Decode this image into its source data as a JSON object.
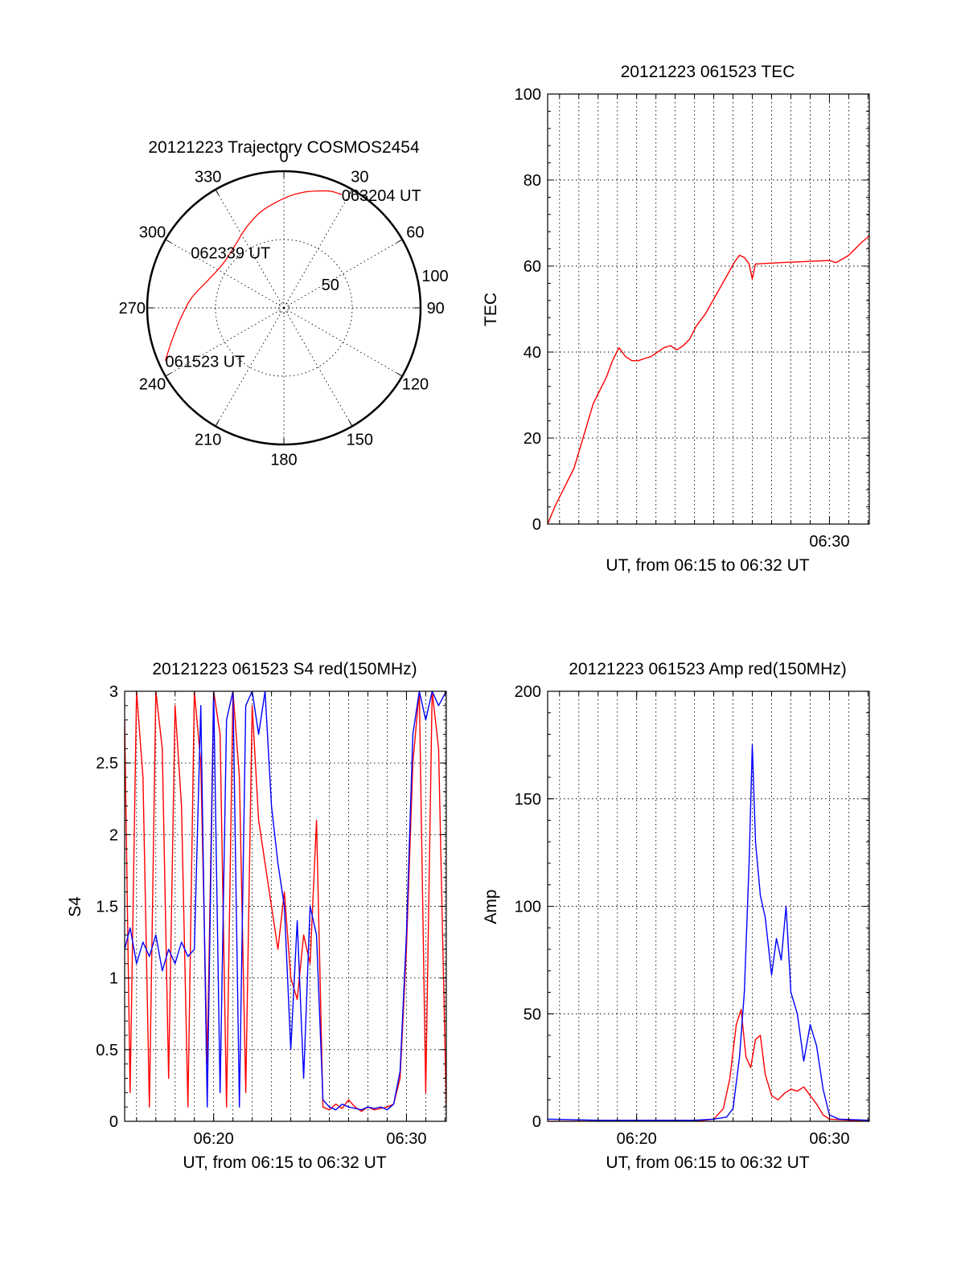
{
  "colors": {
    "red": "#ff0000",
    "blue": "#0000ff",
    "axis": "#000000"
  },
  "chart_data": [
    {
      "type": "polar",
      "title": "20121223 Trajectory COSMOS2454",
      "azimuth_labels": [
        "0",
        "30",
        "60",
        "90",
        "120",
        "150",
        "180",
        "210",
        "240",
        "270",
        "300",
        "330"
      ],
      "radial_labels": [
        "50",
        "100"
      ],
      "grid": true,
      "series": [
        {
          "color": "#ff0000",
          "points": [
            {
              "az": 246,
              "r": 95
            },
            {
              "az": 254,
              "r": 85
            },
            {
              "az": 264,
              "r": 76
            },
            {
              "az": 276,
              "r": 68
            },
            {
              "az": 290,
              "r": 59
            },
            {
              "az": 306,
              "r": 55
            },
            {
              "az": 322,
              "r": 58
            },
            {
              "az": 335,
              "r": 65
            },
            {
              "az": 346,
              "r": 72
            },
            {
              "az": 355,
              "r": 77
            },
            {
              "az": 3,
              "r": 82
            },
            {
              "az": 10,
              "r": 86
            },
            {
              "az": 16,
              "r": 89
            },
            {
              "az": 22,
              "r": 92
            },
            {
              "az": 27,
              "r": 93
            }
          ]
        }
      ],
      "annotations": [
        {
          "text": "061523 UT",
          "az": 246,
          "r": 95
        },
        {
          "text": "062339 UT",
          "az": 322,
          "r": 58
        },
        {
          "text": "063204 UT",
          "az": 27,
          "r": 93
        }
      ]
    },
    {
      "type": "line",
      "title": "20121223 061523 TEC",
      "xlabel": "UT, from 06:15 to 06:32 UT",
      "ylabel": "TEC",
      "xlim": [
        "06:15:23",
        "06:32:04"
      ],
      "ylim": [
        0,
        100
      ],
      "yticks": [
        "0",
        "20",
        "40",
        "60",
        "80",
        "100"
      ],
      "xticks": [
        {
          "t": "06:30:00",
          "label": "06:30"
        }
      ],
      "grid": true,
      "series": [
        {
          "color": "#ff0000",
          "x": [
            "06:15:23",
            "06:15:45",
            "06:16:05",
            "06:16:25",
            "06:16:45",
            "06:17:05",
            "06:17:25",
            "06:17:45",
            "06:18:05",
            "06:18:25",
            "06:18:45",
            "06:19:05",
            "06:19:25",
            "06:19:45",
            "06:20:05",
            "06:20:25",
            "06:20:45",
            "06:21:05",
            "06:21:25",
            "06:21:45",
            "06:22:05",
            "06:22:25",
            "06:22:45",
            "06:23:05",
            "06:23:20",
            "06:23:35",
            "06:23:50",
            "06:24:05",
            "06:24:20",
            "06:24:35",
            "06:24:50",
            "06:25:05",
            "06:25:20",
            "06:25:35",
            "06:25:50",
            "06:26:00",
            "06:26:10",
            "06:26:20",
            "06:26:35",
            "06:27:00",
            "06:27:30",
            "06:28:00",
            "06:28:30",
            "06:29:00",
            "06:29:30",
            "06:30:00",
            "06:30:20",
            "06:30:40",
            "06:31:00",
            "06:31:20",
            "06:31:40",
            "06:32:04"
          ],
          "values": [
            0,
            4,
            7,
            10,
            13,
            18,
            23,
            28,
            31,
            34,
            38,
            41,
            39,
            38,
            38,
            38.5,
            39,
            40,
            41,
            41.5,
            40.5,
            41.5,
            43,
            46,
            47.5,
            49,
            51,
            53,
            55,
            57,
            59,
            61,
            62.5,
            62,
            60.5,
            57,
            60.5,
            60.5,
            60.6,
            60.7,
            60.8,
            60.9,
            61,
            61.1,
            61.2,
            61.3,
            60.8,
            61.6,
            62.5,
            64,
            65.5,
            67
          ]
        }
      ]
    },
    {
      "type": "line",
      "title": "20121223 061523 S4 red(150MHz)",
      "xlabel": "UT, from 06:15 to 06:32 UT",
      "ylabel": "S4",
      "xlim": [
        "06:15:23",
        "06:32:04"
      ],
      "ylim": [
        0,
        3
      ],
      "yticks": [
        "0",
        "0.5",
        "1",
        "1.5",
        "2",
        "2.5",
        "3"
      ],
      "xticks": [
        {
          "t": "06:20:00",
          "label": "06:20"
        },
        {
          "t": "06:30:00",
          "label": "06:30"
        }
      ],
      "grid": true,
      "series": [
        {
          "color": "#ff0000",
          "x": [
            "06:15:23",
            "06:15:40",
            "06:16:00",
            "06:16:20",
            "06:16:40",
            "06:17:00",
            "06:17:20",
            "06:17:40",
            "06:18:00",
            "06:18:20",
            "06:18:40",
            "06:19:00",
            "06:19:20",
            "06:19:40",
            "06:20:00",
            "06:20:20",
            "06:20:40",
            "06:21:00",
            "06:21:20",
            "06:21:40",
            "06:22:00",
            "06:22:20",
            "06:22:40",
            "06:23:00",
            "06:23:20",
            "06:23:40",
            "06:24:00",
            "06:24:20",
            "06:24:40",
            "06:25:00",
            "06:25:20",
            "06:25:40",
            "06:26:00",
            "06:26:20",
            "06:26:40",
            "06:27:00",
            "06:27:20",
            "06:27:40",
            "06:28:00",
            "06:28:20",
            "06:28:40",
            "06:29:00",
            "06:29:20",
            "06:29:40",
            "06:30:00",
            "06:30:20",
            "06:30:40",
            "06:31:00",
            "06:31:20",
            "06:31:40",
            "06:32:04"
          ],
          "values": [
            2.8,
            0.2,
            3,
            2.4,
            0.1,
            3,
            2.6,
            0.3,
            2.9,
            2.2,
            0.1,
            3,
            2.5,
            0.4,
            3,
            2.7,
            0.1,
            3,
            2.4,
            0.2,
            2.9,
            2.1,
            1.8,
            1.5,
            1.2,
            1.6,
            1.0,
            0.85,
            1.3,
            1.1,
            2.1,
            0.1,
            0.08,
            0.12,
            0.09,
            0.15,
            0.1,
            0.07,
            0.1,
            0.08,
            0.09,
            0.1,
            0.12,
            0.3,
            1.2,
            2.5,
            3,
            0.2,
            3,
            2.6,
            0.1
          ]
        },
        {
          "color": "#0000ff",
          "x": [
            "06:15:23",
            "06:15:40",
            "06:16:00",
            "06:16:20",
            "06:16:40",
            "06:17:00",
            "06:17:20",
            "06:17:40",
            "06:18:00",
            "06:18:20",
            "06:18:40",
            "06:19:00",
            "06:19:20",
            "06:19:40",
            "06:20:00",
            "06:20:20",
            "06:20:40",
            "06:21:00",
            "06:21:20",
            "06:21:40",
            "06:22:00",
            "06:22:20",
            "06:22:40",
            "06:23:00",
            "06:23:20",
            "06:23:40",
            "06:24:00",
            "06:24:20",
            "06:24:40",
            "06:25:00",
            "06:25:20",
            "06:25:40",
            "06:26:00",
            "06:26:20",
            "06:26:40",
            "06:27:00",
            "06:27:20",
            "06:27:40",
            "06:28:00",
            "06:28:20",
            "06:28:40",
            "06:29:00",
            "06:29:20",
            "06:29:40",
            "06:30:00",
            "06:30:20",
            "06:30:40",
            "06:31:00",
            "06:31:20",
            "06:31:40",
            "06:32:04"
          ],
          "values": [
            1.2,
            1.35,
            1.1,
            1.25,
            1.15,
            1.3,
            1.05,
            1.2,
            1.1,
            1.25,
            1.15,
            1.2,
            2.9,
            0.1,
            3,
            0.2,
            2.8,
            3,
            0.1,
            2.9,
            3,
            2.7,
            3,
            2.2,
            1.8,
            1.5,
            0.5,
            1.4,
            0.3,
            1.5,
            1.3,
            0.15,
            0.1,
            0.08,
            0.12,
            0.1,
            0.09,
            0.08,
            0.1,
            0.09,
            0.1,
            0.08,
            0.12,
            0.35,
            1.3,
            2.7,
            3,
            2.8,
            3,
            2.9,
            3
          ]
        }
      ]
    },
    {
      "type": "line",
      "title": "20121223 061523 Amp red(150MHz)",
      "xlabel": "UT, from 06:15 to 06:32 UT",
      "ylabel": "Amp",
      "xlim": [
        "06:15:23",
        "06:32:04"
      ],
      "ylim": [
        0,
        200
      ],
      "yticks": [
        "0",
        "50",
        "100",
        "150",
        "200"
      ],
      "xticks": [
        {
          "t": "06:20:00",
          "label": "06:20"
        },
        {
          "t": "06:30:00",
          "label": "06:30"
        }
      ],
      "grid": true,
      "series": [
        {
          "color": "#ff0000",
          "x": [
            "06:15:23",
            "06:20:00",
            "06:23:00",
            "06:24:00",
            "06:24:30",
            "06:24:50",
            "06:25:10",
            "06:25:25",
            "06:25:40",
            "06:25:55",
            "06:26:10",
            "06:26:25",
            "06:26:40",
            "06:27:00",
            "06:27:20",
            "06:27:40",
            "06:28:00",
            "06:28:20",
            "06:28:40",
            "06:29:00",
            "06:29:20",
            "06:29:40",
            "06:30:00",
            "06:32:04"
          ],
          "values": [
            0,
            0,
            0,
            1,
            6,
            20,
            45,
            52,
            30,
            25,
            38,
            40,
            22,
            12,
            10,
            13,
            15,
            14,
            16,
            12,
            8,
            3,
            1,
            0
          ]
        },
        {
          "color": "#0000ff",
          "x": [
            "06:15:23",
            "06:18:00",
            "06:20:00",
            "06:23:00",
            "06:24:00",
            "06:24:40",
            "06:25:00",
            "06:25:20",
            "06:25:35",
            "06:25:50",
            "06:26:00",
            "06:26:10",
            "06:26:25",
            "06:26:40",
            "06:27:00",
            "06:27:15",
            "06:27:30",
            "06:27:45",
            "06:28:00",
            "06:28:20",
            "06:28:40",
            "06:29:00",
            "06:29:20",
            "06:29:40",
            "06:30:00",
            "06:30:30",
            "06:32:04"
          ],
          "values": [
            1,
            0.5,
            0.5,
            0.5,
            1,
            2,
            6,
            30,
            60,
            120,
            175,
            130,
            105,
            95,
            68,
            85,
            75,
            100,
            60,
            50,
            28,
            45,
            35,
            15,
            3,
            1,
            0.5
          ]
        }
      ]
    }
  ]
}
